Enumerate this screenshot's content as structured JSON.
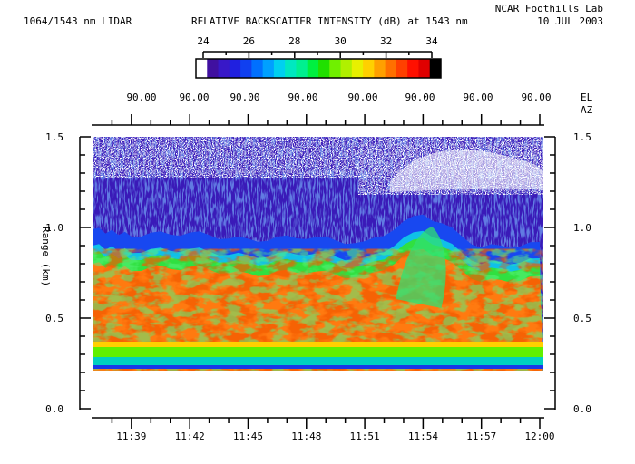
{
  "header": {
    "instrument": "1064/1543 nm LIDAR",
    "title": "RELATIVE BACKSCATTER INTENSITY (dB) at 1543 nm",
    "lab": "NCAR Foothills Lab",
    "date": "10 JUL 2003"
  },
  "colorbar": {
    "ticks": [
      "24",
      "26",
      "28",
      "30",
      "32",
      "34"
    ],
    "range": [
      24,
      34
    ],
    "colors": [
      "#ffffff",
      "#4010a0",
      "#3818c8",
      "#2020e0",
      "#1040f0",
      "#0070ff",
      "#00a0ff",
      "#00d0f0",
      "#00e8c0",
      "#00f090",
      "#00f040",
      "#20e000",
      "#70f000",
      "#b0f000",
      "#e8f000",
      "#ffd000",
      "#ffa000",
      "#ff7000",
      "#ff4000",
      "#ff1000",
      "#e00000",
      "#000000"
    ]
  },
  "angles": {
    "el_label": "EL",
    "az_label": "AZ",
    "values": [
      "90.00",
      "90.00",
      "90.00",
      "90.00",
      "90.00",
      "90.00",
      "90.00",
      "90.00"
    ]
  },
  "chart_data": {
    "type": "heatmap",
    "title": "RELATIVE BACKSCATTER INTENSITY (dB) at 1543 nm",
    "xlabel": "",
    "ylabel": "Range (km)",
    "x_ticks": [
      "11:39",
      "11:42",
      "11:45",
      "11:48",
      "11:51",
      "11:54",
      "11:57",
      "12:00"
    ],
    "x_range": [
      "11:37",
      "12:00"
    ],
    "y_ticks": [
      "0.0",
      "0.5",
      "1.0",
      "1.5"
    ],
    "ylim": [
      0.0,
      1.5
    ],
    "z_units": "dB",
    "z_range": [
      24,
      34
    ],
    "data_start_km": 0.22,
    "layers": [
      {
        "name": "surface band",
        "range_km": [
          0.22,
          0.23
        ],
        "intensity_db": 24.5
      },
      {
        "name": "near-field green band",
        "range_km": [
          0.23,
          0.33
        ],
        "intensity_db": 29
      },
      {
        "name": "boundary layer aerosol",
        "range_km": [
          0.33,
          0.88
        ],
        "intensity_db": 32.5
      },
      {
        "name": "boundary layer top (green/cyan)",
        "range_km": [
          0.8,
          0.95
        ],
        "intensity_db": 28
      },
      {
        "name": "free troposphere",
        "range_km": [
          0.95,
          1.5
        ],
        "intensity_db": 24.5
      }
    ],
    "boundary_layer_top_km": [
      {
        "t": "11:37",
        "z": 0.86
      },
      {
        "t": "11:39",
        "z": 0.83
      },
      {
        "t": "11:42",
        "z": 0.84
      },
      {
        "t": "11:45",
        "z": 0.8
      },
      {
        "t": "11:48",
        "z": 0.82
      },
      {
        "t": "11:51",
        "z": 0.78
      },
      {
        "t": "11:54",
        "z": 0.95
      },
      {
        "t": "11:57",
        "z": 0.76
      },
      {
        "t": "12:00",
        "z": 0.78
      }
    ],
    "grid": false
  }
}
